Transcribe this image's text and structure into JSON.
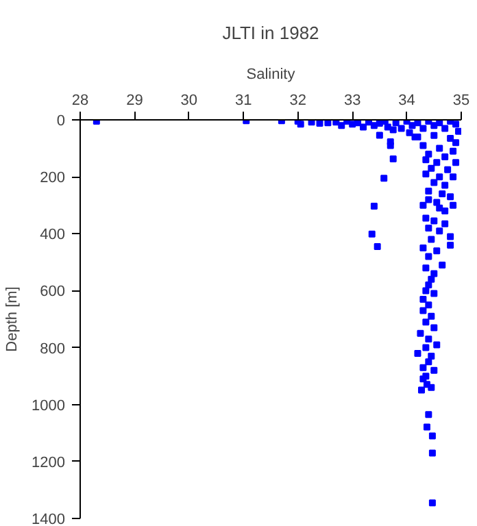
{
  "chart_data": {
    "type": "scatter",
    "title": "JLTI in 1982",
    "xlabel": "Salinity",
    "ylabel": "Depth [m]",
    "xlim": [
      28,
      35
    ],
    "xticks": [
      28,
      29,
      30,
      31,
      32,
      33,
      34,
      35
    ],
    "ylim": [
      1400,
      0
    ],
    "yticks": [
      0,
      200,
      400,
      600,
      800,
      1000,
      1200,
      1400
    ],
    "grid": false,
    "marker": "square",
    "color": "#0000ff",
    "x": [
      28.3,
      31.05,
      31.7,
      32.0,
      32.05,
      32.25,
      32.4,
      32.55,
      32.7,
      32.8,
      32.9,
      33.0,
      33.1,
      33.2,
      33.3,
      33.4,
      33.5,
      33.6,
      33.65,
      33.8,
      33.9,
      34.0,
      34.1,
      34.2,
      34.3,
      34.4,
      34.5,
      34.6,
      34.7,
      34.8,
      34.9,
      34.95,
      33.75,
      34.05,
      34.15,
      33.5,
      33.7,
      33.7,
      33.75,
      33.58,
      33.4,
      33.36,
      33.46,
      34.2,
      34.5,
      34.8,
      34.9,
      34.3,
      34.6,
      34.85,
      34.4,
      34.7,
      34.35,
      34.55,
      34.9,
      34.45,
      34.75,
      34.35,
      34.6,
      34.85,
      34.5,
      34.7,
      34.4,
      34.65,
      34.8,
      34.4,
      34.55,
      34.85,
      34.3,
      34.6,
      34.7,
      34.35,
      34.5,
      34.7,
      34.4,
      34.6,
      34.8,
      34.45,
      34.8,
      34.3,
      34.55,
      34.4,
      34.65,
      34.35,
      34.5,
      34.45,
      34.4,
      34.35,
      34.5,
      34.3,
      34.4,
      34.3,
      34.45,
      34.35,
      34.5,
      34.25,
      34.4,
      34.55,
      34.35,
      34.2,
      34.45,
      34.4,
      34.3,
      34.5,
      34.35,
      34.27,
      34.37,
      34.3,
      34.45,
      34.4,
      34.37,
      34.47,
      34.47,
      34.47
    ],
    "values": [
      5,
      3,
      3,
      5,
      15,
      8,
      12,
      10,
      8,
      20,
      5,
      15,
      10,
      25,
      8,
      20,
      12,
      5,
      25,
      10,
      30,
      5,
      20,
      10,
      30,
      5,
      20,
      10,
      30,
      5,
      15,
      40,
      35,
      45,
      60,
      54,
      77,
      90,
      137,
      205,
      303,
      401,
      445,
      60,
      55,
      65,
      80,
      90,
      100,
      110,
      120,
      130,
      140,
      150,
      150,
      170,
      175,
      190,
      200,
      200,
      220,
      230,
      250,
      260,
      270,
      280,
      290,
      300,
      300,
      310,
      320,
      345,
      355,
      365,
      380,
      390,
      410,
      420,
      440,
      450,
      460,
      480,
      510,
      520,
      540,
      560,
      580,
      600,
      610,
      630,
      650,
      670,
      690,
      710,
      730,
      750,
      770,
      790,
      800,
      820,
      830,
      850,
      870,
      880,
      900,
      949,
      929,
      910,
      940,
      1035,
      1079,
      1110,
      1170,
      1345
    ]
  }
}
